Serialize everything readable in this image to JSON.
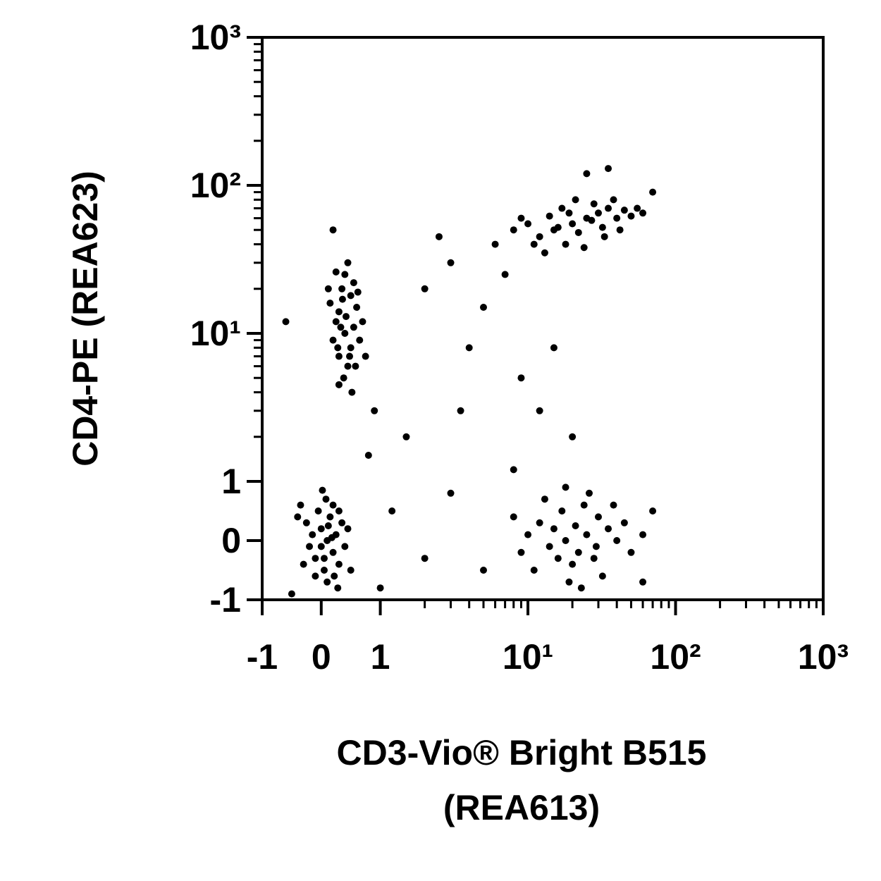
{
  "chart_data": {
    "type": "scatter",
    "xlabel": [
      "CD3-Vio® Bright B515",
      "(REA613)"
    ],
    "ylabel": "CD4-PE (REA623)",
    "xscale": "biexponential",
    "yscale": "biexponential",
    "xlim": [
      -1,
      1000
    ],
    "ylim": [
      -1,
      1000
    ],
    "xticks": [
      -1,
      0,
      1,
      {
        "value": 10,
        "label": "10¹"
      },
      {
        "value": 100,
        "label": "10²"
      },
      {
        "value": 1000,
        "label": "10³"
      }
    ],
    "yticks": [
      -1,
      0,
      1,
      {
        "value": 10,
        "label": "10¹"
      },
      {
        "value": 100,
        "label": "10²"
      },
      {
        "value": 1000,
        "label": "10³"
      }
    ],
    "color": "#000000",
    "x": [
      0.1,
      0,
      0.2,
      -0.1,
      0.15,
      0.05,
      0.25,
      -0.05,
      0.3,
      -0.15,
      0.2,
      0.1,
      0,
      0.35,
      -0.2,
      0.12,
      0.22,
      0.08,
      -0.1,
      0.3,
      0.4,
      -0.25,
      0.05,
      0.18,
      -0.3,
      0.45,
      0.28,
      0.02,
      0.5,
      -0.35,
      0.4,
      0.3,
      0.5,
      0.35,
      0.45,
      0.25,
      0.55,
      0.4,
      0.3,
      0.6,
      0.2,
      0.5,
      0.38,
      0.65,
      0.15,
      0.45,
      0.3,
      0.55,
      0.7,
      0.25,
      0.42,
      0.33,
      0.48,
      0.58,
      0.12,
      0.52,
      0.36,
      0.62,
      0.28,
      0.75,
      20,
      15,
      25,
      12,
      30,
      18,
      35,
      10,
      22,
      40,
      28,
      14,
      45,
      8,
      32,
      17,
      50,
      24,
      38,
      11,
      27,
      19,
      55,
      13,
      33,
      21,
      60,
      9,
      42,
      16,
      18,
      15,
      22,
      12,
      25,
      20,
      14,
      30,
      10,
      17,
      28,
      35,
      11,
      24,
      19,
      40,
      13,
      32,
      16,
      45,
      9,
      26,
      21,
      50,
      23,
      8,
      38,
      60,
      18,
      29,
      1.2,
      2,
      3,
      5,
      6,
      3,
      1.5,
      0.9,
      4,
      7,
      2.5,
      9,
      12,
      15,
      5,
      0.8,
      -0.6,
      0.2,
      25,
      35,
      70,
      70,
      60,
      1,
      -0.5,
      20,
      8,
      2,
      -0.4,
      3.5
    ],
    "y": [
      0,
      0.2,
      -0.2,
      -0.3,
      0.4,
      -0.5,
      0.1,
      0.5,
      -0.4,
      0.1,
      0.6,
      -0.7,
      -0.1,
      0.3,
      -0.1,
      0.25,
      -0.6,
      0.7,
      -0.6,
      0.5,
      -0.1,
      0.3,
      -0.3,
      0.05,
      -0.4,
      0.2,
      -0.8,
      0.85,
      -0.5,
      0.6,
      10,
      14,
      8,
      20,
      6,
      12,
      11,
      25,
      7,
      15,
      9,
      18,
      5,
      9,
      16,
      30,
      4.5,
      22,
      12,
      26,
      13,
      11,
      7,
      6,
      20,
      4,
      17,
      19,
      8,
      7,
      55,
      50,
      60,
      45,
      65,
      40,
      70,
      55,
      48,
      60,
      75,
      62,
      68,
      50,
      52,
      70,
      62,
      38,
      80,
      40,
      58,
      65,
      70,
      35,
      45,
      80,
      65,
      60,
      50,
      52,
      0,
      0.2,
      -0.2,
      0.3,
      0.1,
      -0.4,
      -0.1,
      0.4,
      0.1,
      0.5,
      -0.3,
      0.2,
      -0.5,
      0.6,
      -0.7,
      0,
      0.7,
      -0.6,
      -0.3,
      0.3,
      -0.2,
      0.8,
      0.25,
      -0.2,
      -0.8,
      0.4,
      0.6,
      0.1,
      0.9,
      -0.1,
      0.5,
      -0.3,
      0.8,
      -0.5,
      40,
      30,
      2,
      3,
      8,
      25,
      45,
      5,
      3,
      8,
      15,
      1.5,
      12,
      50,
      120,
      130,
      90,
      0.5,
      -0.7,
      -0.8,
      -0.9,
      2,
      1.2,
      20,
      0.4,
      3
    ]
  }
}
